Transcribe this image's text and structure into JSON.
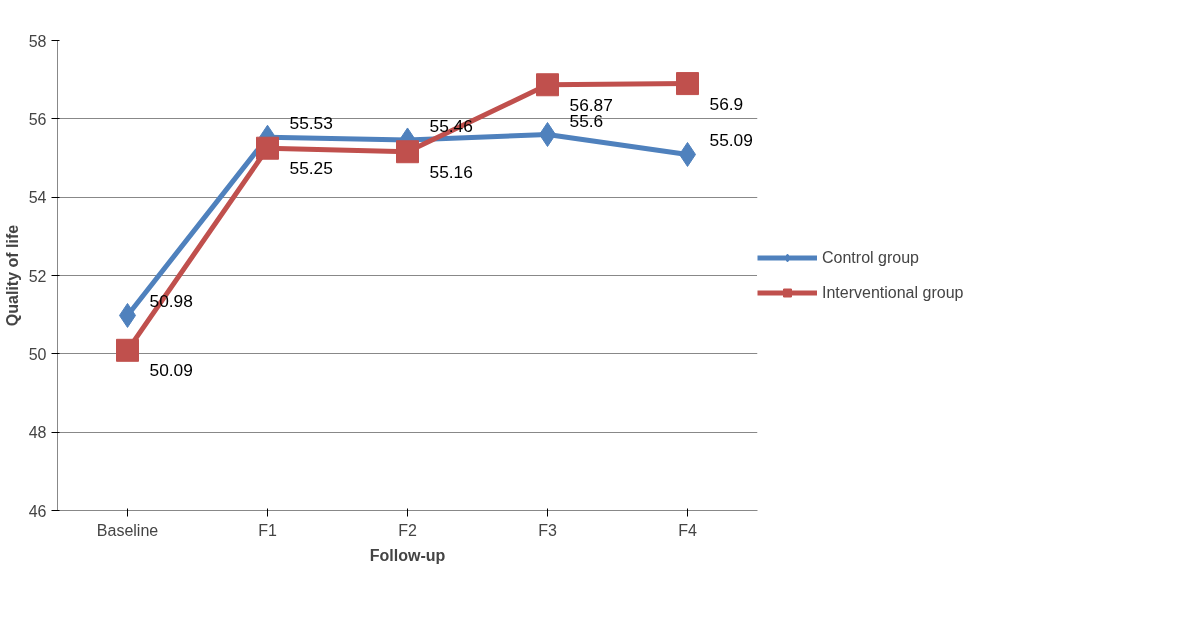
{
  "chart_data": {
    "type": "line",
    "xlabel": "Follow-up",
    "ylabel": "Quality of life",
    "categories": [
      "Baseline",
      "F1",
      "F2",
      "F3",
      "F4"
    ],
    "series": [
      {
        "name": "Control group",
        "color": "#4f81bd",
        "marker": "diamond",
        "values": [
          50.98,
          55.53,
          55.46,
          55.6,
          55.09
        ]
      },
      {
        "name": "Interventional group",
        "color": "#c0504d",
        "marker": "square",
        "values": [
          50.09,
          55.25,
          55.16,
          56.87,
          56.9
        ]
      }
    ],
    "ylim": [
      46,
      58
    ],
    "yticks": [
      46,
      48,
      50,
      52,
      54,
      56,
      58
    ],
    "grid": "y",
    "legend": "right",
    "data_labels": true,
    "line_style": "solid"
  }
}
